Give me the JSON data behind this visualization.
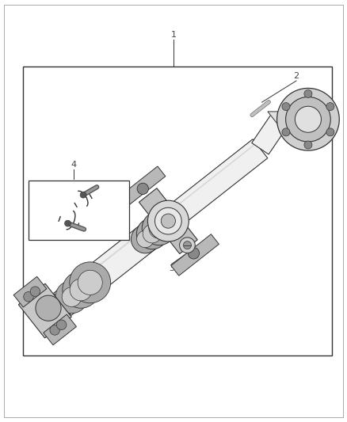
{
  "background_color": "#ffffff",
  "line_color": "#333333",
  "label_color": "#444444",
  "fig_width": 4.38,
  "fig_height": 5.33,
  "dpi": 100,
  "shaft_fill": "#f0f0f0",
  "shaft_dark": "#aaaaaa",
  "shaft_mid": "#cccccc",
  "metal_dark": "#888888",
  "metal_mid": "#bbbbbb",
  "metal_light": "#dddddd",
  "flange_dark": "#777777",
  "yoke_color": "#c8c8c8",
  "bolt_color": "#666666"
}
